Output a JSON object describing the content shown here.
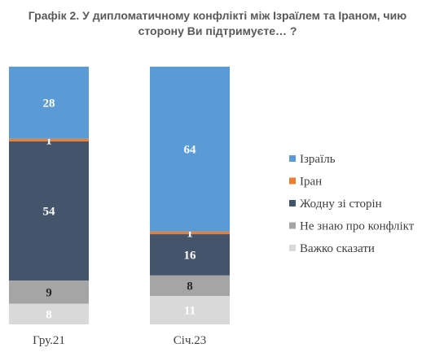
{
  "chart_data": {
    "type": "bar",
    "stacked": true,
    "title": "Графік 2. У дипломатичному конфлікті між Ізраїлем та Іраном, чию сторону Ви підтримуєте… ?",
    "categories": [
      "Гру.21",
      "Січ.23"
    ],
    "series": [
      {
        "name": "Важко сказати",
        "values": [
          8,
          11
        ],
        "color": "#d9d9d9",
        "label_color": "#ffffff"
      },
      {
        "name": "Не знаю про конфлікт",
        "values": [
          9,
          8
        ],
        "color": "#a5a5a5",
        "label_color": "#262626"
      },
      {
        "name": "Жодну зі сторін",
        "values": [
          54,
          16
        ],
        "color": "#44546a",
        "label_color": "#ffffff"
      },
      {
        "name": "Іран",
        "values": [
          1,
          1
        ],
        "color": "#ed7d31",
        "label_color": "#ffffff"
      },
      {
        "name": "Ізраїль",
        "values": [
          28,
          64
        ],
        "color": "#5b9bd5",
        "label_color": "#ffffff"
      }
    ],
    "legend_order": [
      "Ізраїль",
      "Іран",
      "Жодну зі сторін",
      "Не знаю про конфлікт",
      "Важко сказати"
    ],
    "legend_position": "right",
    "grid": false,
    "xlabel": "",
    "ylabel": ""
  }
}
